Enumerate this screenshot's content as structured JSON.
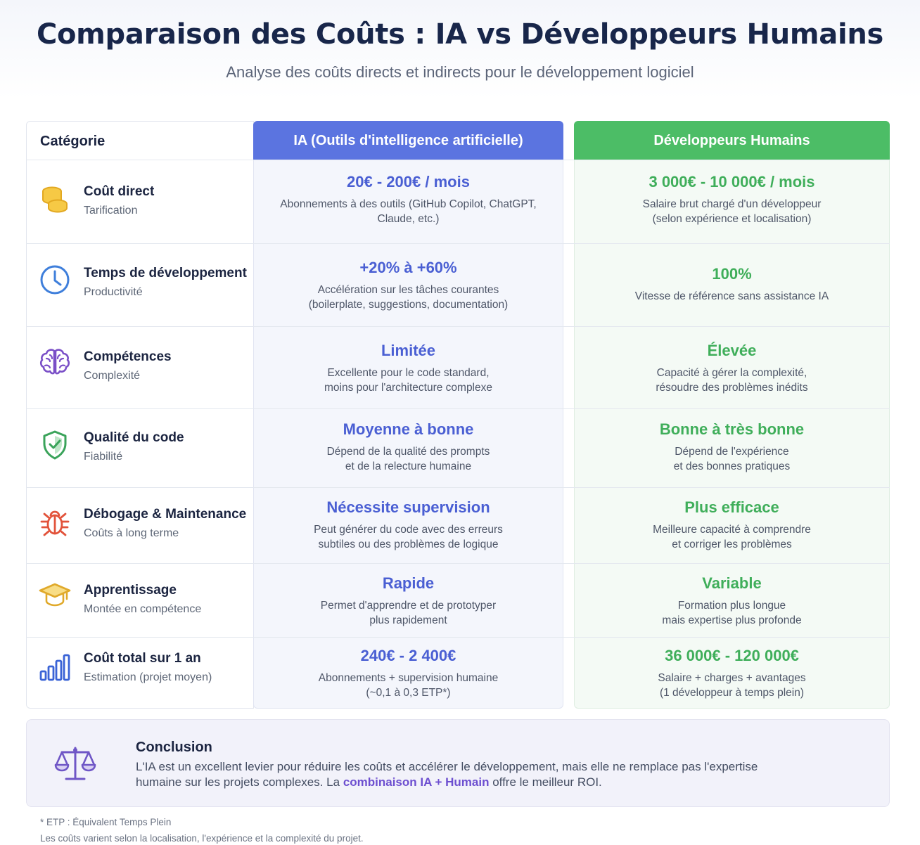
{
  "title": "Comparaison des Coûts : IA vs Développeurs Humains",
  "subtitle": "Analyse des coûts directs et indirects pour le développement logiciel",
  "table": {
    "headers": {
      "category": "Catégorie",
      "ia": "IA (Outils d'intelligence artificielle)",
      "human": "Développeurs Humains"
    },
    "rows": [
      {
        "icon": "coins-icon",
        "title": "Coût direct",
        "subtitle": "Tarification",
        "ia_value": "20€ - 200€ / mois",
        "ia_desc": "Abonnements à des outils (GitHub Copilot, ChatGPT,\nClaude, etc.)",
        "human_value": "3 000€ - 10 000€ / mois",
        "human_desc": "Salaire brut chargé d'un développeur\n(selon expérience et localisation)"
      },
      {
        "icon": "clock-icon",
        "title": "Temps de développement",
        "subtitle": "Productivité",
        "ia_value": "+20% à +60%",
        "ia_desc": "Accélération sur les tâches courantes\n(boilerplate, suggestions, documentation)",
        "human_value": "100%",
        "human_desc": "Vitesse de référence sans assistance IA"
      },
      {
        "icon": "brain-icon",
        "title": "Compétences",
        "subtitle": "Complexité",
        "ia_value": "Limitée",
        "ia_desc": "Excellente pour le code standard,\nmoins pour l'architecture complexe",
        "human_value": "Élevée",
        "human_desc": "Capacité à gérer la complexité,\nrésoudre des problèmes inédits"
      },
      {
        "icon": "shield-check-icon",
        "title": "Qualité du code",
        "subtitle": "Fiabilité",
        "ia_value": "Moyenne à bonne",
        "ia_desc": "Dépend de la qualité des prompts\net de la relecture humaine",
        "human_value": "Bonne à très bonne",
        "human_desc": "Dépend de l'expérience\net des bonnes pratiques"
      },
      {
        "icon": "bug-icon",
        "title": "Débogage & Maintenance",
        "subtitle": "Coûts à long terme",
        "ia_value": "Nécessite supervision",
        "ia_desc": "Peut générer du code avec des erreurs\nsubtiles ou des problèmes de logique",
        "human_value": "Plus efficace",
        "human_desc": "Meilleure capacité à comprendre\net corriger les problèmes"
      },
      {
        "icon": "graduation-cap-icon",
        "title": "Apprentissage",
        "subtitle": "Montée en compétence",
        "ia_value": "Rapide",
        "ia_desc": "Permet d'apprendre et de prototyper\nplus rapidement",
        "human_value": "Variable",
        "human_desc": "Formation plus longue\nmais expertise plus profonde"
      },
      {
        "icon": "bar-chart-icon",
        "title": "Coût total sur 1 an",
        "subtitle": "Estimation (projet moyen)",
        "ia_value": "240€ - 2 400€",
        "ia_desc": "Abonnements + supervision humaine\n(~0,1 à 0,3 ETP*)",
        "human_value": "36 000€ - 120 000€",
        "human_desc": "Salaire + charges + avantages\n(1 développeur à temps plein)"
      }
    ]
  },
  "conclusion": {
    "icon": "scale-icon",
    "title": "Conclusion",
    "text_1": "L'IA est un excellent levier pour réduire les coûts et accélérer le développement, mais elle ne remplace pas l'expertise humaine sur les projets complexes. La ",
    "text_strong": "combinaison IA + Humain",
    "text_2": " offre le meilleur ROI."
  },
  "footnotes": {
    "etp": "* ETP : Équivalent Temps Plein",
    "note": "Les coûts varient selon la localisation, l'expérience et la complexité du projet."
  },
  "colors": {
    "ia_accent": "#5b74e0",
    "human_accent": "#4cbd66",
    "title": "#18264a"
  }
}
